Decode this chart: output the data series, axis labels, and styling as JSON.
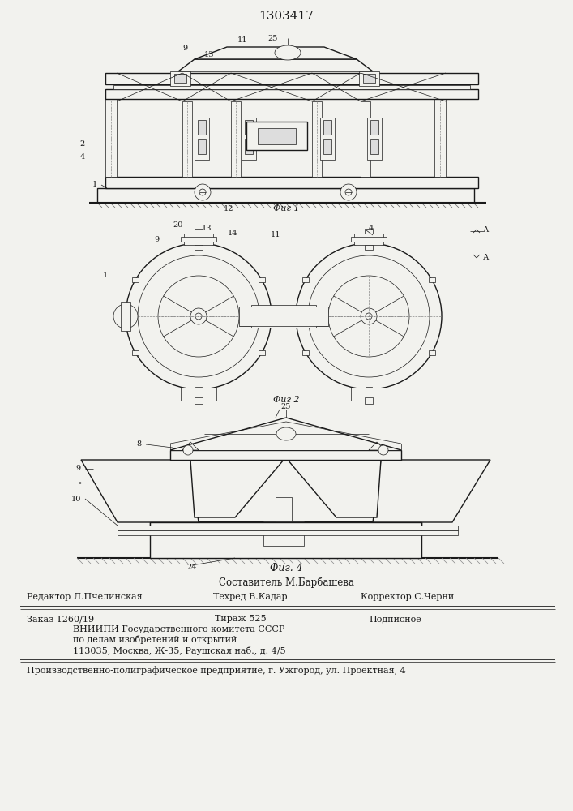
{
  "patent_number": "1303417",
  "bg_color": "#f2f2ee",
  "line_color": "#1a1a1a",
  "fig_width": 7.07,
  "fig_height": 10.0,
  "footer": {
    "composer": "Составитель М.Барбашева",
    "editor": "Редактор Л.Пчелинская",
    "techred": "Техред В.Кадар",
    "corrector": "Корректор С.Черни",
    "order": "Заказ 1260/19",
    "tirazh": "Тираж 525",
    "podpisnoe": "Подписное",
    "vnipi_line1": "ВНИИПИ Государственного комитета СССР",
    "vnipi_line2": "по делам изобретений и открытий",
    "vnipi_line3": "113035, Москва, Ж-35, Раушская наб., д. 4/5",
    "production": "Производственно-полиграфическое предприятие, г. Ужгород, ул. Проектная, 4"
  },
  "fig1_caption": "Фиг 1",
  "fig2_caption": "Фиг 2",
  "fig4_caption": "Фиг. 4"
}
